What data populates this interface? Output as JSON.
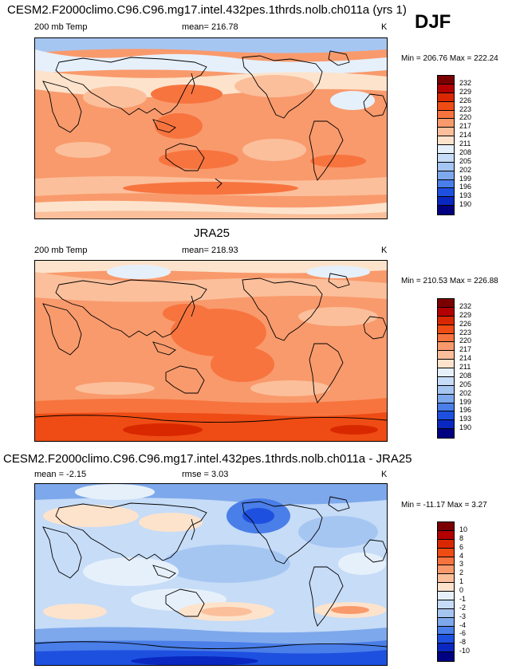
{
  "season": "DJF",
  "panels": [
    {
      "id": "model",
      "title": "CESM2.F2000climo.C96.C96.mg17.intel.432pes.1thrds.nolb.ch011a (yrs 1)",
      "left_label": "200 mb Temp",
      "center_label": "mean= 216.78",
      "right_label": "K",
      "minmax": "Min = 206.76 Max = 222.24"
    },
    {
      "id": "obs",
      "title": "JRA25",
      "left_label": "200 mb Temp",
      "center_label": "mean= 218.93",
      "right_label": "K",
      "minmax": "Min = 210.53 Max = 226.88"
    },
    {
      "id": "diff",
      "title": "CESM2.F2000climo.C96.C96.mg17.intel.432pes.1thrds.nolb.ch011a - JRA25",
      "left_label": "mean =  -2.15",
      "center_label": "rmse =   3.03",
      "right_label": "K",
      "minmax": "Min = -11.17 Max =   3.27"
    }
  ],
  "colorbars": {
    "absolute": {
      "labels": [
        "232",
        "229",
        "226",
        "223",
        "220",
        "217",
        "214",
        "211",
        "208",
        "205",
        "202",
        "199",
        "196",
        "193",
        "190"
      ],
      "colors": [
        "#7a0000",
        "#b30000",
        "#d92800",
        "#ee4c14",
        "#f7743f",
        "#f99a6c",
        "#fbbf9b",
        "#fde3cc",
        "#e6f0fb",
        "#c6dcf7",
        "#a6c6f2",
        "#7ea8ec",
        "#4a7ee8",
        "#1e50e0",
        "#0a28c0",
        "#000080"
      ]
    },
    "difference": {
      "labels": [
        "10",
        "8",
        "6",
        "4",
        "3",
        "2",
        "1",
        "0",
        "-1",
        "-2",
        "-3",
        "-4",
        "-6",
        "-8",
        "-10"
      ],
      "colors": [
        "#7a0000",
        "#b30000",
        "#d92800",
        "#ee4c14",
        "#f7743f",
        "#f99a6c",
        "#fbbf9b",
        "#fde3cc",
        "#e6f0fb",
        "#c6dcf7",
        "#a6c6f2",
        "#7ea8ec",
        "#4a7ee8",
        "#1e50e0",
        "#0a28c0",
        "#000080"
      ]
    }
  },
  "chart_data": [
    {
      "type": "heatmap",
      "title": "CESM2.F2000climo.C96.C96.mg17.intel.432pes.1thrds.nolb.ch011a (yrs 1)",
      "variable": "200 mb Temp",
      "units": "K",
      "mean": 216.78,
      "min": 206.76,
      "max": 222.24,
      "levels": [
        190,
        193,
        196,
        199,
        202,
        205,
        208,
        211,
        214,
        217,
        220,
        223,
        226,
        229,
        232
      ],
      "projection": "cylindrical equidistant, Pacific-centered",
      "legend": "right"
    },
    {
      "type": "heatmap",
      "title": "JRA25",
      "variable": "200 mb Temp",
      "units": "K",
      "mean": 218.93,
      "min": 210.53,
      "max": 226.88,
      "levels": [
        190,
        193,
        196,
        199,
        202,
        205,
        208,
        211,
        214,
        217,
        220,
        223,
        226,
        229,
        232
      ],
      "projection": "cylindrical equidistant, Pacific-centered",
      "legend": "right"
    },
    {
      "type": "heatmap",
      "title": "CESM2.F2000climo.C96.C96.mg17.intel.432pes.1thrds.nolb.ch011a - JRA25",
      "units": "K",
      "mean": -2.15,
      "rmse": 3.03,
      "min": -11.17,
      "max": 3.27,
      "levels": [
        -10,
        -8,
        -6,
        -4,
        -3,
        -2,
        -1,
        0,
        1,
        2,
        3,
        4,
        6,
        8,
        10
      ],
      "projection": "cylindrical equidistant, Pacific-centered",
      "legend": "right"
    }
  ]
}
